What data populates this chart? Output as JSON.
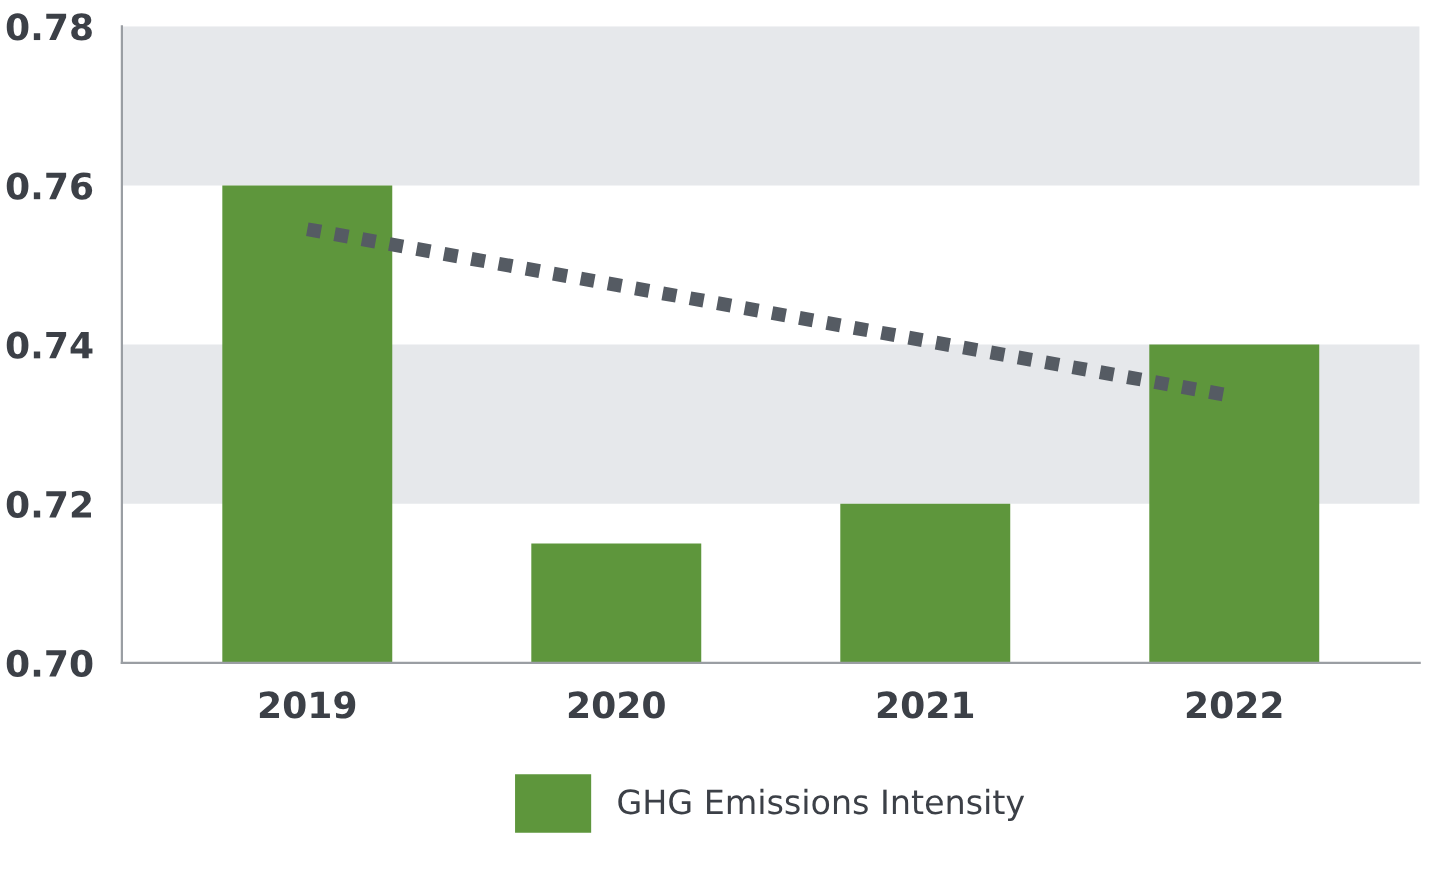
{
  "chart_data": {
    "type": "bar",
    "categories": [
      "2019",
      "2020",
      "2021",
      "2022"
    ],
    "series": [
      {
        "name": "GHG Emissions Intensity",
        "color": "#5e963c",
        "values": [
          0.76,
          0.715,
          0.72,
          0.74
        ]
      },
      {
        "type": "line",
        "color": "#555b63",
        "line_style": "dotted",
        "values": [
          0.7545,
          0.7475,
          0.7405,
          0.7335
        ]
      }
    ],
    "ylim": [
      0.7,
      0.78
    ],
    "yticks": [
      {
        "value": 0.7,
        "label": "0.70"
      },
      {
        "value": 0.72,
        "label": "0.72"
      },
      {
        "value": 0.74,
        "label": "0.74"
      },
      {
        "value": 0.76,
        "label": "0.76"
      },
      {
        "value": 0.78,
        "label": "0.78"
      }
    ],
    "bands": [
      {
        "axis": "y",
        "from": 0.72,
        "to": 0.74,
        "color": "#e6e8eb"
      },
      {
        "axis": "y",
        "from": 0.76,
        "to": 0.78,
        "color": "#e6e8eb"
      }
    ],
    "legend": "bottom",
    "grid": false
  }
}
